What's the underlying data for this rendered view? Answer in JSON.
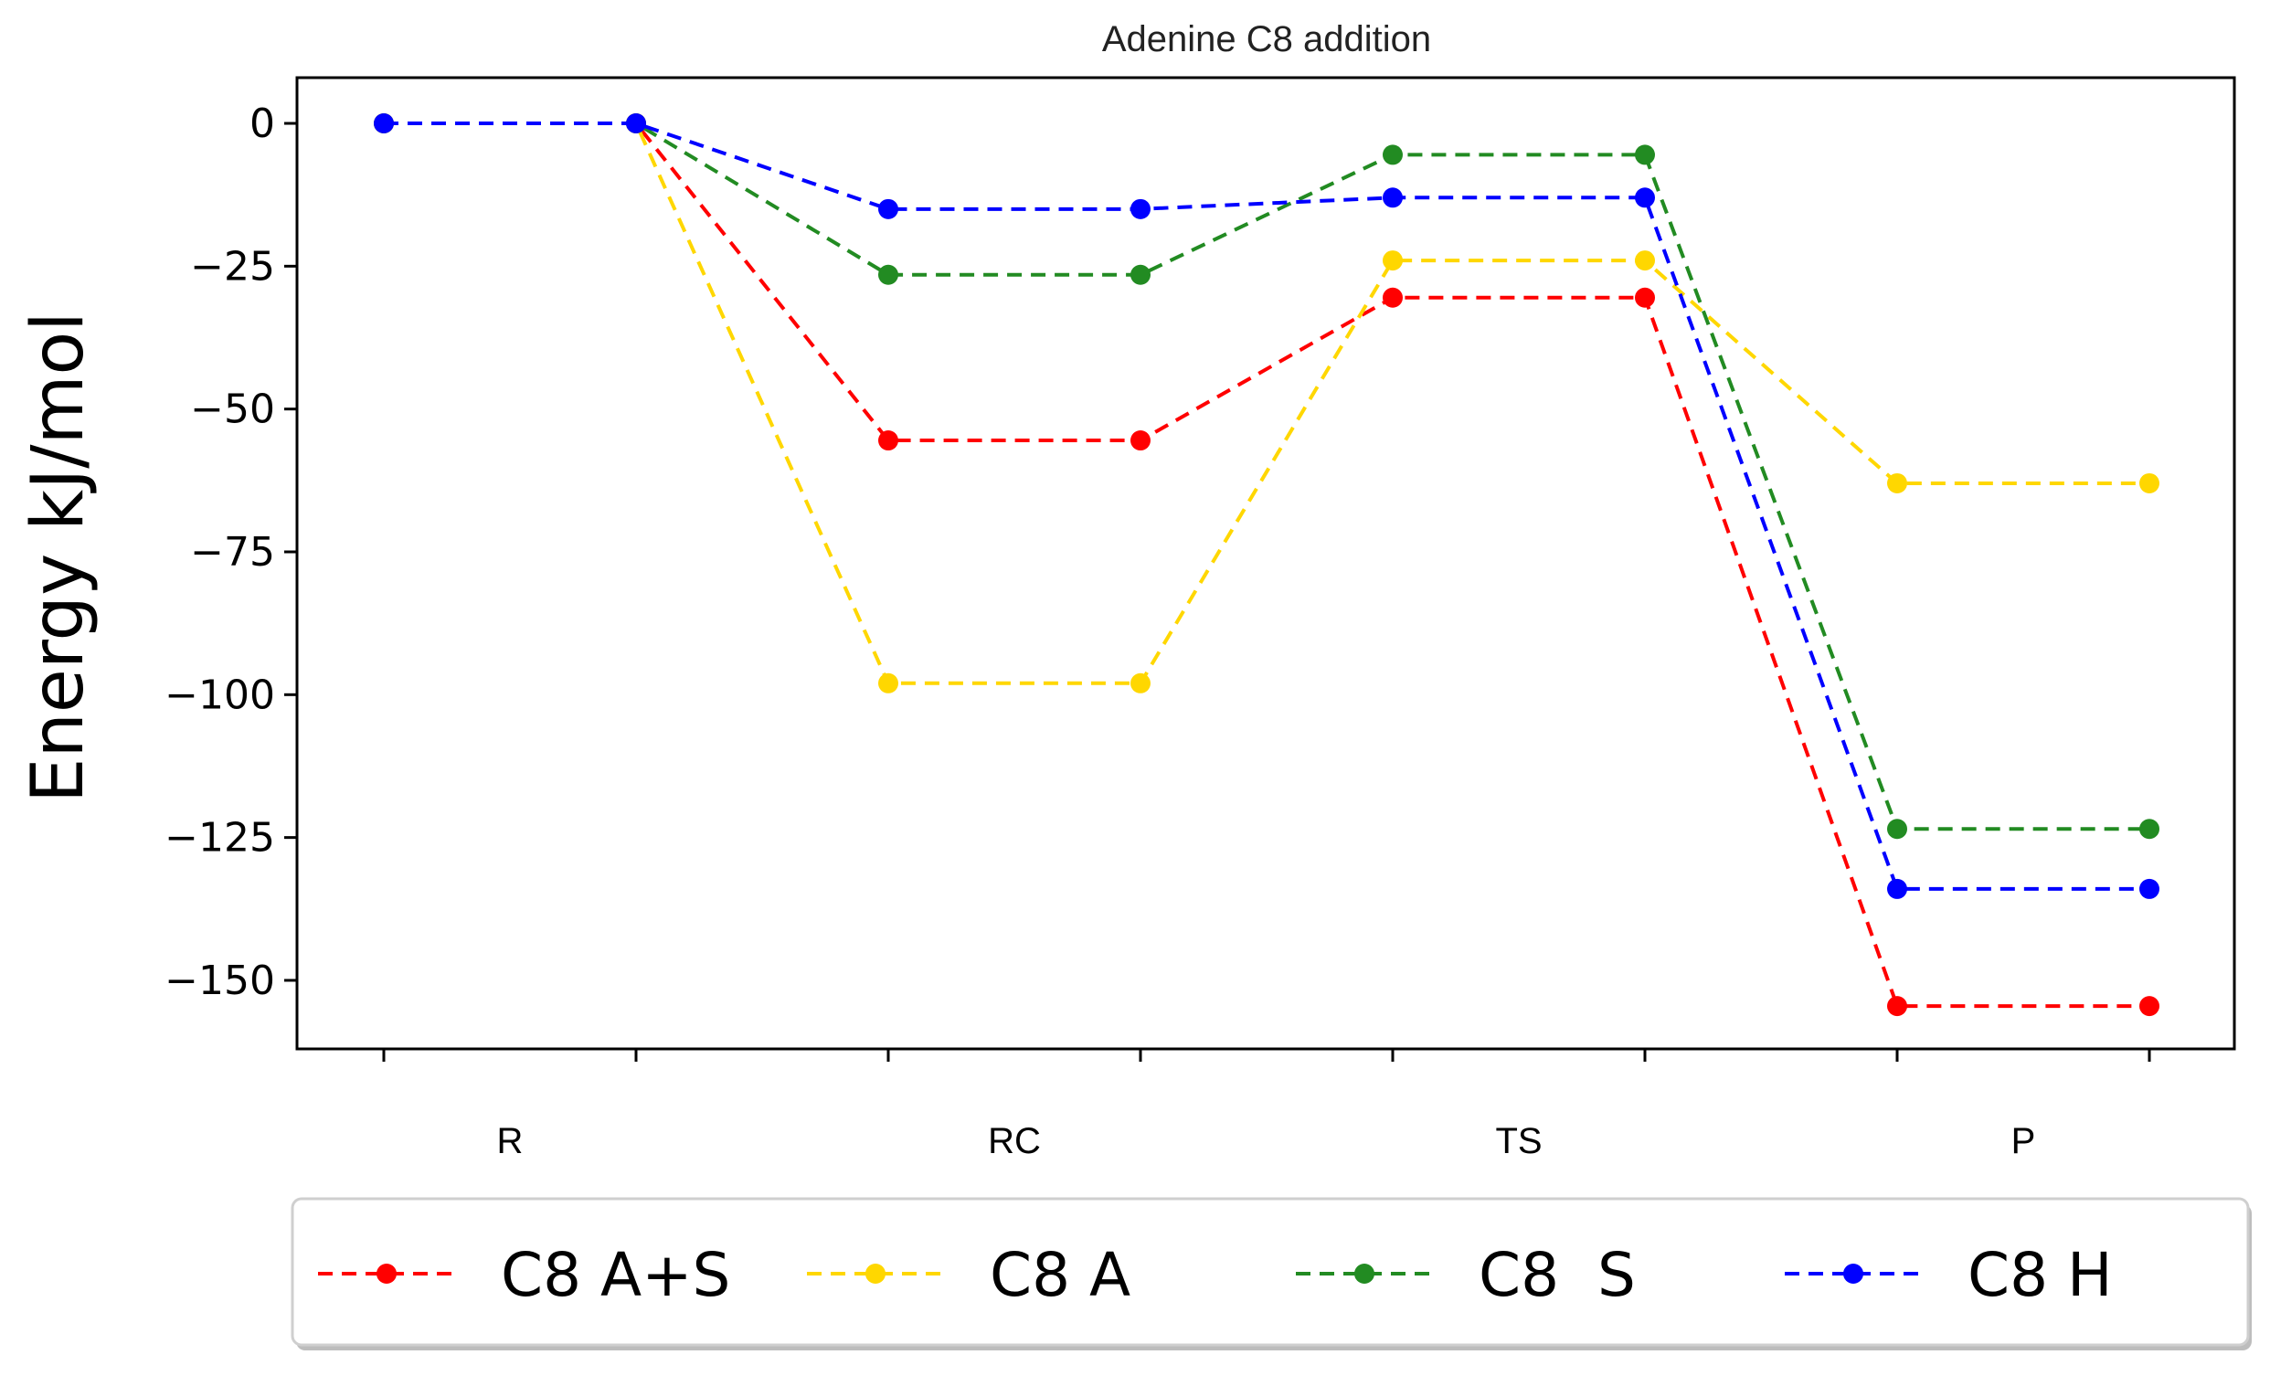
{
  "chart_data": {
    "type": "line",
    "title": "Adenine C8 addition",
    "xlabel": "",
    "ylabel": "Energy kJ/mol",
    "categories": [
      "R",
      "RC",
      "TS",
      "P"
    ],
    "x": [
      0,
      1,
      2,
      3,
      4,
      5,
      6,
      7
    ],
    "ylim": [
      -162,
      8
    ],
    "yticks": [
      0,
      -25,
      -50,
      -75,
      -100,
      -125,
      -150
    ],
    "ytick_labels": [
      "0",
      "−25",
      "−50",
      "−75",
      "−100",
      "−125",
      "−150"
    ],
    "legend_position": "bottom",
    "line_style": "dashed",
    "marker": "circle",
    "series": [
      {
        "name": "C8 A+S",
        "color": "#ff0000",
        "values": [
          0,
          0,
          -55.5,
          -55.5,
          -30.5,
          -30.5,
          -154.5,
          -154.5
        ]
      },
      {
        "name": "C8 A",
        "color": "#ffd700",
        "values": [
          0,
          0,
          -98,
          -98,
          -24,
          -24,
          -63,
          -63
        ]
      },
      {
        "name": "C8  S",
        "color": "#228b22",
        "values": [
          0,
          0,
          -26.5,
          -26.5,
          -5.5,
          -5.5,
          -123.5,
          -123.5
        ]
      },
      {
        "name": "C8 H",
        "color": "#0000ff",
        "values": [
          0,
          0,
          -15,
          -15,
          -13,
          -13,
          -134,
          -134
        ]
      }
    ]
  }
}
